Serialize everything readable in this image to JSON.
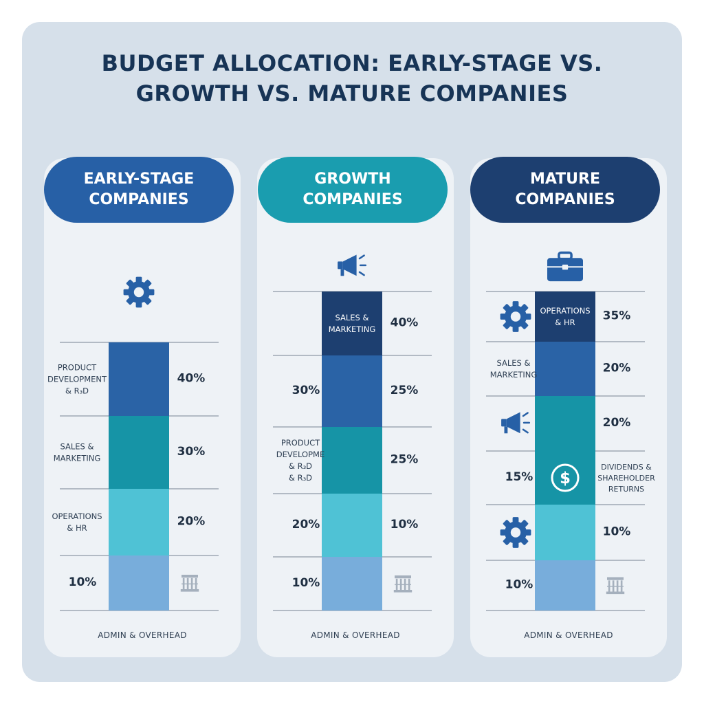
{
  "title": {
    "line1": "BUDGET ALLOCATION: EARLY-STAGE VS.",
    "line2": "GROWTH VS. MATURE COMPANIES"
  },
  "colors": {
    "background": "#d6e0ea",
    "panel": "#eef2f6",
    "title": "#173456",
    "header_blue": "#2760a6",
    "header_teal": "#1a9daf",
    "header_navy": "#1d3f70",
    "seg_navy": "#1d3f70",
    "seg_blue": "#2a63a6",
    "seg_teal": "#1694a6",
    "seg_aqua": "#4fc2d5",
    "seg_light": "#78addb"
  },
  "chart_data": [
    {
      "type": "bar",
      "stacked": true,
      "header": [
        "EARLY-STAGE",
        "COMPANIES"
      ],
      "header_color": "#2760a6",
      "icon": "gear-icon",
      "footer": "ADMIN & OVERHEAD",
      "segments": [
        {
          "label": [
            "PRODUCT",
            "DEVELOPMENT",
            "& R₃D"
          ],
          "value_label": "40%",
          "color": "#2a63a6"
        },
        {
          "label": [
            "SALES &",
            "MARKETING"
          ],
          "value_label": "30%",
          "color": "#1694a6"
        },
        {
          "label": [
            "OPERATIONS",
            "& HR"
          ],
          "value_label": "20%",
          "color": "#4fc2d5"
        },
        {
          "label": [],
          "left_value": "10%",
          "icon": "building-icon",
          "color": "#78addb"
        }
      ]
    },
    {
      "type": "bar",
      "stacked": true,
      "header": [
        "GROWTH",
        "COMPANIES"
      ],
      "header_color": "#1a9daf",
      "icon": "megaphone-icon",
      "footer": "ADMIN & OVERHEAD",
      "segments": [
        {
          "inner_label": [
            "SALES &",
            "MARKETING"
          ],
          "value_label": "40%",
          "color": "#1d3f70"
        },
        {
          "left_value": "30%",
          "value_label": "25%",
          "color": "#2a63a6"
        },
        {
          "label": [
            "PRODUCT",
            "DEVELOPME",
            "& R₃D",
            "& R₃D"
          ],
          "value_label": "25%",
          "color": "#1694a6"
        },
        {
          "left_value": "20%",
          "value_label": "10%",
          "color": "#4fc2d5"
        },
        {
          "left_value": "10%",
          "icon": "building-icon",
          "color": "#78addb"
        }
      ]
    },
    {
      "type": "bar",
      "stacked": true,
      "header": [
        "MATURE",
        "COMPANIES"
      ],
      "header_color": "#1d3f70",
      "icon": "briefcase-icon",
      "footer": "ADMIN & OVERHEAD",
      "segments": [
        {
          "inner_label": [
            "OPERATIONS",
            "& HR"
          ],
          "value_label": "35%",
          "left_icon": "gear-icon",
          "color": "#1d3f70"
        },
        {
          "label": [
            "SALES &",
            "MARKETING"
          ],
          "value_label": "20%",
          "color": "#2a63a6"
        },
        {
          "left_icon": "megaphone-icon",
          "value_label": "20%",
          "color": "#1694a6"
        },
        {
          "left_value": "15%",
          "inner_icon": "dollar-icon",
          "right_label": [
            "DIVIDENDS &",
            "SHAREHOLDER",
            "RETURNS"
          ],
          "color": "#1694a6"
        },
        {
          "left_icon": "gear-icon",
          "value_label": "10%",
          "color": "#4fc2d5"
        },
        {
          "left_value": "10%",
          "icon": "building-icon",
          "color": "#78addb"
        }
      ]
    }
  ]
}
